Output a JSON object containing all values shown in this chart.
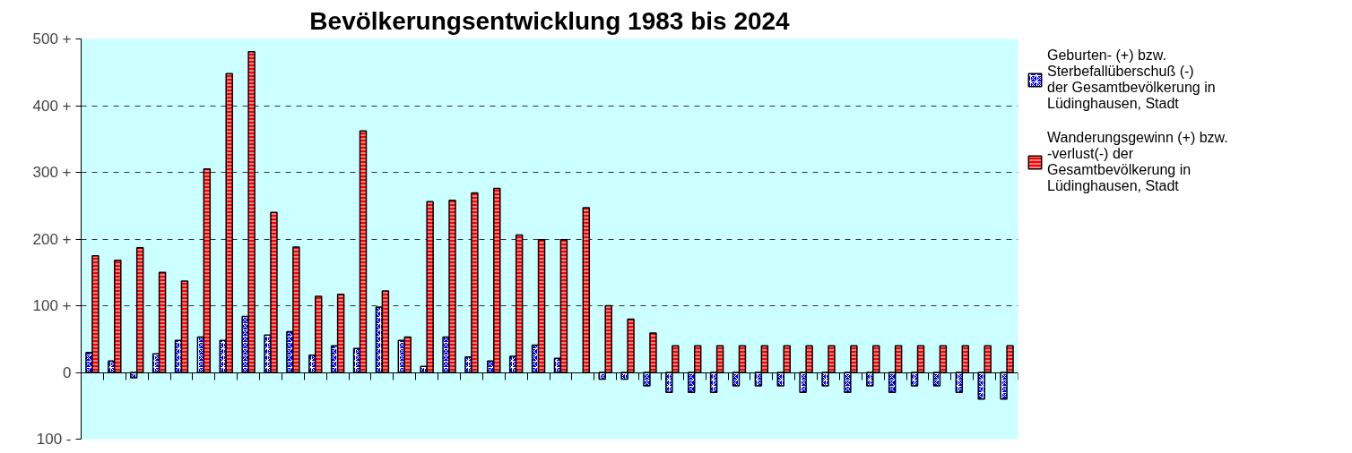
{
  "chart_data": {
    "type": "bar",
    "title": "Bevölkerungsentwicklung 1983 bis 2024",
    "categories": [
      null,
      null,
      null,
      null,
      null,
      null,
      null,
      null,
      null,
      null,
      null,
      null,
      null,
      null,
      null,
      null,
      null,
      null,
      null,
      null,
      null,
      null,
      null,
      null,
      null,
      null,
      null,
      null,
      null,
      null,
      null,
      null,
      null,
      null,
      null,
      null,
      null,
      null,
      null,
      null,
      null,
      null
    ],
    "series": [
      {
        "name": "Geburten- (+) bzw. Sterbefallüberschuß (-) der Gesamtbevölkerung in Lüdinghausen, Stadt",
        "color": "#0000ff",
        "values": [
          30,
          17,
          -8,
          28,
          48,
          53,
          48,
          84,
          56,
          61,
          26,
          40,
          36,
          98,
          48,
          9,
          53,
          23,
          17,
          24,
          41,
          21,
          0,
          -10,
          -10,
          -20,
          -30,
          -30,
          -30,
          -20,
          -20,
          -20,
          -30,
          -20,
          -30,
          -20,
          -30,
          -20,
          -20,
          -30,
          -40,
          -40
        ]
      },
      {
        "name": "Wanderungsgewinn (+) bzw. -verlust(-) der Gesamtbevölkerung in Lüdinghausen, Stadt",
        "color": "#ff0000",
        "values": [
          175,
          168,
          187,
          150,
          137,
          305,
          448,
          481,
          240,
          188,
          114,
          117,
          362,
          122,
          53,
          256,
          258,
          269,
          276,
          206,
          199,
          199,
          247,
          100,
          80,
          59,
          40,
          40,
          40,
          40,
          40,
          40,
          40,
          40,
          40,
          40,
          40,
          40,
          40,
          40,
          40,
          40
        ]
      }
    ],
    "ylim": [
      -100,
      500
    ],
    "yticks": [
      {
        "value": -100,
        "label": "100 -"
      },
      {
        "value": 0,
        "label": "0"
      },
      {
        "value": 100,
        "label": "100 +"
      },
      {
        "value": 200,
        "label": "200 +"
      },
      {
        "value": 300,
        "label": "300 +"
      },
      {
        "value": 400,
        "label": "400 +"
      },
      {
        "value": 500,
        "label": "500 +"
      }
    ],
    "grid": "y",
    "legend": "right",
    "tick_labels": "y"
  }
}
